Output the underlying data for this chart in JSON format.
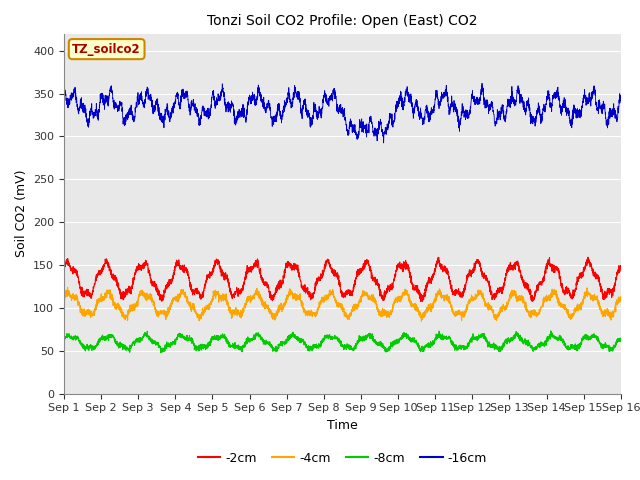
{
  "title": "Tonzi Soil CO2 Profile: Open (East) CO2",
  "ylabel": "Soil CO2 (mV)",
  "xlabel": "Time",
  "annotation": "TZ_soilco2",
  "legend": [
    "-2cm",
    "-4cm",
    "-8cm",
    "-16cm"
  ],
  "colors": [
    "#ff0000",
    "#ffa500",
    "#00cc00",
    "#0000cc"
  ],
  "ylim": [
    0,
    420
  ],
  "yticks": [
    0,
    50,
    100,
    150,
    200,
    250,
    300,
    350,
    400
  ],
  "bg_color": "#e8e8e8",
  "n_points": 3600,
  "days": 15,
  "sep1_to_16_labels": [
    "Sep 1",
    "Sep 2",
    "Sep 3",
    "Sep 4",
    "Sep 5",
    "Sep 6",
    "Sep 7",
    "Sep 8",
    "Sep 9",
    "Sep 10",
    "Sep 11",
    "Sep 12",
    "Sep 13",
    "Sep 14",
    "Sep 15",
    "Sep 16"
  ]
}
